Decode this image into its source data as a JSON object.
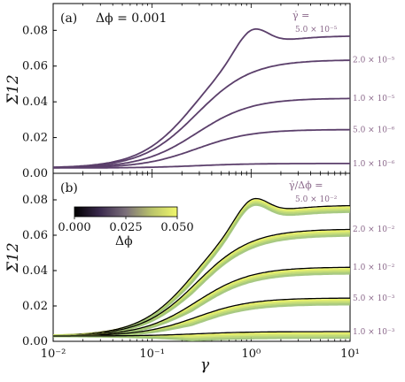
{
  "chart_data": [
    {
      "type": "line",
      "panel_label": "(a)",
      "note": "Δϕ = 0.001",
      "ylabel": "Σ12",
      "xlabel": "",
      "xscale": "log",
      "xlim": [
        0.01,
        10
      ],
      "ylim": [
        0,
        0.095
      ],
      "yticks": [
        "0.00",
        "0.02",
        "0.04",
        "0.06",
        "0.08"
      ],
      "xticks": [],
      "legend_header": "γ̇ =",
      "series": [
        {
          "name": "5.0 × 10⁻⁵",
          "plateau": 0.077,
          "peak": 0.089,
          "color": "#5b3f6b"
        },
        {
          "name": "2.0 × 10⁻⁵",
          "plateau": 0.0635,
          "peak": 0.0635,
          "color": "#5b3f6b"
        },
        {
          "name": "1.0 × 10⁻⁵",
          "plateau": 0.042,
          "peak": 0.042,
          "color": "#5b3f6b"
        },
        {
          "name": "5.0 × 10⁻⁶",
          "plateau": 0.0245,
          "peak": 0.0245,
          "color": "#5b3f6b"
        },
        {
          "name": "1.0 × 10⁻⁶",
          "plateau": 0.0055,
          "peak": 0.0055,
          "color": "#5b3f6b"
        }
      ]
    },
    {
      "type": "line",
      "panel_label": "(b)",
      "ylabel": "Σ12",
      "xlabel": "γ",
      "xscale": "log",
      "xlim": [
        0.01,
        10
      ],
      "ylim": [
        0,
        0.095
      ],
      "yticks": [
        "0.00",
        "0.02",
        "0.04",
        "0.06",
        "0.08"
      ],
      "xticks": [
        "10⁻²",
        "10⁻¹",
        "10⁰",
        "10¹"
      ],
      "legend_header": "γ̇/Δϕ =",
      "colorbar": {
        "label": "Δϕ",
        "ticks": [
          "0.000",
          "0.025",
          "0.050"
        ],
        "range": [
          0,
          0.05
        ]
      },
      "series": [
        {
          "name": "5.0 × 10⁻²",
          "plateau": 0.077,
          "peak": 0.089
        },
        {
          "name": "2.0 × 10⁻²",
          "plateau": 0.0635,
          "peak": 0.0635
        },
        {
          "name": "1.0 × 10⁻²",
          "plateau": 0.042,
          "peak": 0.042
        },
        {
          "name": "5.0 × 10⁻³",
          "plateau": 0.0245,
          "peak": 0.0245
        },
        {
          "name": "1.0 × 10⁻³",
          "plateau": 0.0055,
          "peak": 0.0055
        }
      ]
    }
  ],
  "colors": {
    "panel_a_line": "#5b3f6b",
    "annotation": "#8c6a8c",
    "viridis_low": "#000004",
    "viridis_mid": "#9a8a7a",
    "viridis_high": "#f0f921"
  }
}
